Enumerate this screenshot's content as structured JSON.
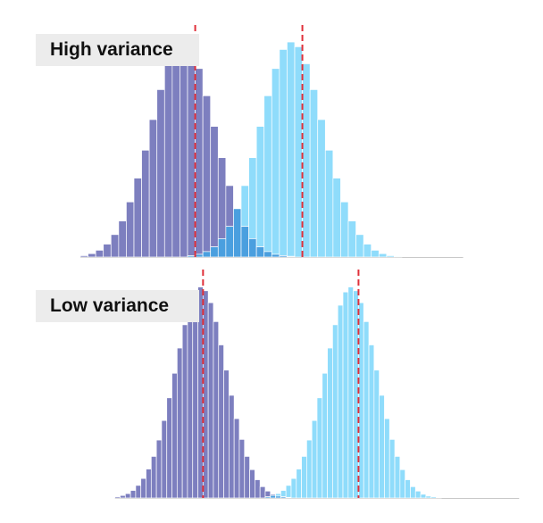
{
  "chart_data": [
    {
      "type": "bar",
      "title": "High variance",
      "x": [
        -11,
        -10,
        -9,
        -8,
        -7,
        -6,
        -5,
        -4,
        -3,
        -2,
        -1,
        0,
        1,
        2,
        3,
        4,
        5,
        6,
        7,
        8,
        9,
        10,
        11,
        12,
        13,
        14,
        15,
        16,
        17,
        18,
        19,
        20,
        21,
        22,
        23,
        24,
        25,
        26,
        27,
        28,
        29,
        30,
        31,
        32,
        33,
        34,
        35,
        36,
        37,
        38
      ],
      "series": [
        {
          "values": [
            0.2,
            0.5,
            1.0,
            1.9,
            3.3,
            5.3,
            8.1,
            11.6,
            15.7,
            20.2,
            24.6,
            28.4,
            30.9,
            31.6,
            30.5,
            27.7,
            23.7,
            19.2,
            14.6,
            10.5,
            7.1,
            4.5,
            2.7,
            1.5,
            0.8,
            0.4,
            0.2,
            0.1,
            0,
            0,
            0,
            0,
            0,
            0,
            0,
            0,
            0,
            0,
            0,
            0,
            0,
            0,
            0,
            0,
            0,
            0,
            0,
            0,
            0,
            0
          ],
          "color": "#7d7fbf"
        },
        {
          "values": [
            0,
            0,
            0,
            0,
            0,
            0,
            0,
            0,
            0,
            0,
            0,
            0,
            0,
            0,
            0.2,
            0.4,
            0.8,
            1.5,
            2.7,
            4.5,
            7.1,
            10.5,
            14.6,
            19.2,
            23.7,
            27.7,
            30.5,
            31.6,
            30.9,
            28.4,
            24.6,
            20.2,
            15.7,
            11.6,
            8.1,
            5.3,
            3.3,
            1.9,
            1.0,
            0.5,
            0.2,
            0.1,
            0,
            0,
            0,
            0,
            0,
            0,
            0,
            0
          ],
          "color": "#8fdcfb"
        }
      ],
      "overlap_color": "#4a9fdf",
      "mean_lines": [
        3.5,
        17.5
      ],
      "mean_line_color": "#e0303a",
      "xlim": [
        -15,
        48
      ],
      "ylim": [
        0,
        32
      ],
      "grid": false,
      "axes_visible": false
    },
    {
      "type": "bar",
      "title": "Low variance",
      "x": [
        -13,
        -12,
        -11,
        -10,
        -9,
        -8,
        -7,
        -6,
        -5,
        -4,
        -3,
        -2,
        -1,
        0,
        1,
        2,
        3,
        4,
        5,
        6,
        7,
        8,
        9,
        10,
        11,
        12,
        13,
        14,
        15,
        16,
        17,
        18,
        19,
        20,
        21,
        22,
        23,
        24,
        25,
        26,
        27,
        28,
        29,
        30,
        31,
        32,
        33,
        34,
        35,
        36,
        37,
        38,
        39,
        40,
        41,
        42,
        43,
        44,
        45,
        46,
        47,
        48,
        49,
        50,
        51,
        52,
        53,
        54,
        55,
        56,
        57,
        58,
        59,
        60,
        61,
        62,
        63,
        64
      ],
      "series": [
        {
          "values": [
            0.2,
            0.4,
            0.7,
            1.2,
            2.0,
            3.1,
            4.6,
            6.6,
            9.2,
            12.3,
            15.9,
            19.8,
            23.8,
            27.5,
            30.6,
            32.7,
            33.5,
            32.9,
            31.0,
            28.0,
            24.3,
            20.3,
            16.3,
            12.6,
            9.3,
            6.6,
            4.5,
            2.9,
            1.8,
            1.1,
            0.6,
            0.3,
            0.2,
            0.1,
            0,
            0,
            0,
            0,
            0,
            0,
            0,
            0,
            0,
            0,
            0,
            0,
            0,
            0,
            0,
            0,
            0,
            0,
            0,
            0,
            0,
            0,
            0,
            0,
            0,
            0,
            0,
            0,
            0,
            0,
            0,
            0,
            0,
            0,
            0,
            0,
            0,
            0,
            0,
            0,
            0,
            0,
            0,
            0
          ],
          "color": "#7d7fbf"
        },
        {
          "values": [
            0,
            0,
            0,
            0,
            0,
            0,
            0,
            0,
            0,
            0,
            0,
            0,
            0,
            0,
            0,
            0,
            0,
            0,
            0,
            0,
            0,
            0,
            0,
            0,
            0,
            0,
            0,
            0,
            0,
            0.2,
            0.4,
            0.7,
            1.2,
            2.0,
            3.1,
            4.6,
            6.6,
            9.2,
            12.3,
            15.9,
            19.8,
            23.8,
            27.5,
            30.6,
            32.7,
            33.5,
            32.9,
            31.0,
            28.0,
            24.3,
            20.3,
            16.3,
            12.6,
            9.3,
            6.6,
            4.5,
            2.9,
            1.8,
            1.1,
            0.6,
            0.3,
            0.2,
            0.1,
            0,
            0,
            0,
            0,
            0,
            0,
            0,
            0,
            0,
            0,
            0,
            0,
            0,
            0,
            0
          ],
          "color": "#8fdcfb"
        }
      ],
      "overlap_color": "#4a9fdf",
      "mean_lines": [
        3.5,
        33.5
      ],
      "mean_line_color": "#e0303a",
      "xlim": [
        -15,
        66
      ],
      "ylim": [
        0,
        34
      ],
      "grid": false,
      "axes_visible": false
    }
  ]
}
